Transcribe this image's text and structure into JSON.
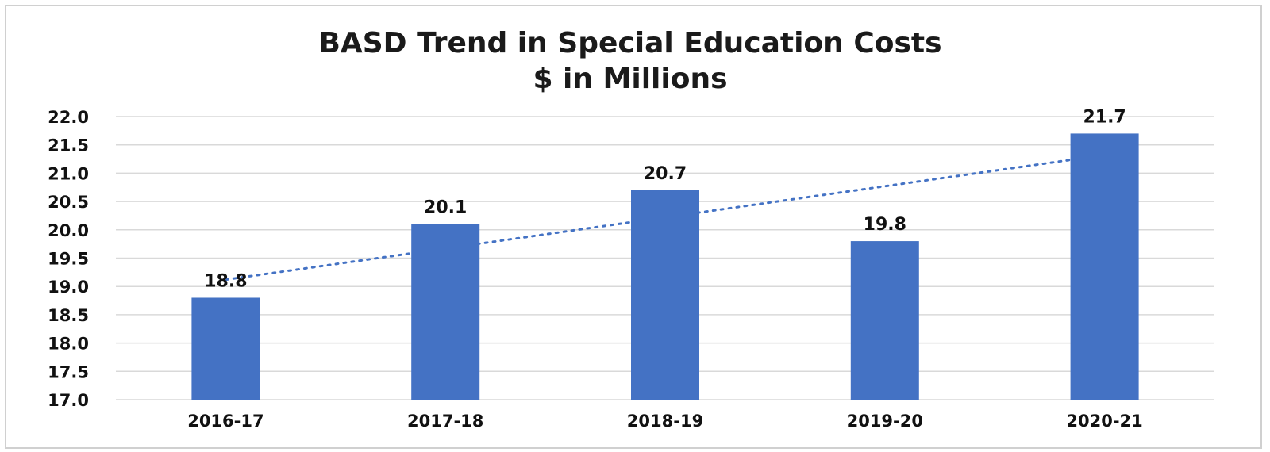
{
  "chart_data": {
    "type": "bar",
    "title": "BASD Trend in Special Education Costs",
    "subtitle": "$ in Millions",
    "xlabel": "",
    "ylabel": "",
    "categories": [
      "2016-17",
      "2017-18",
      "2018-19",
      "2019-20",
      "2020-21"
    ],
    "values": [
      18.8,
      20.1,
      20.7,
      19.8,
      21.7
    ],
    "value_labels": [
      "18.8",
      "20.1",
      "20.7",
      "19.8",
      "21.7"
    ],
    "ylim": [
      17.0,
      22.0
    ],
    "y_ticks": [
      "17.0",
      "17.5",
      "18.0",
      "18.5",
      "19.0",
      "19.5",
      "20.0",
      "20.5",
      "21.0",
      "21.5",
      "22.0"
    ],
    "grid": true,
    "legend": "none",
    "trendline": "linear, dotted",
    "bar_color": "#4472C4",
    "trendline_color": "#4472C4"
  }
}
